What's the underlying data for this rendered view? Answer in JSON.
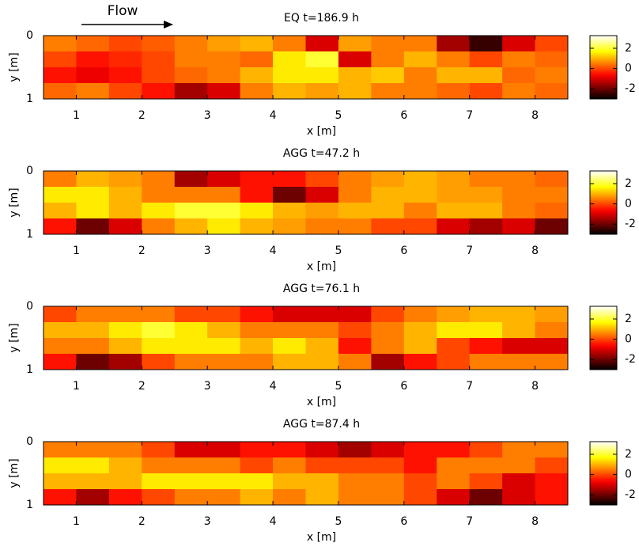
{
  "chart_data": [
    {
      "type": "heatmap",
      "annotation": "Flow",
      "title": "EQ t=186.9 h",
      "xlabel": "x [m]",
      "ylabel": "y [m]",
      "xlim": [
        0.5,
        8.5
      ],
      "xticks": [
        1,
        2,
        3,
        4,
        5,
        6,
        7,
        8
      ],
      "ylim": [
        1,
        0
      ],
      "yticks": [
        0,
        1
      ],
      "colormap": "hot",
      "clim": [
        -3,
        3.25
      ],
      "cticks": [
        2,
        0,
        -2
      ],
      "x": [
        0.75,
        1.25,
        1.75,
        2.25,
        2.75,
        3.25,
        3.75,
        4.25,
        4.75,
        5.25,
        5.75,
        6.25,
        6.75,
        7.25,
        7.75,
        8.25
      ],
      "y": [
        0.125,
        0.375,
        0.625,
        0.875
      ],
      "z": [
        [
          0.5,
          0.3,
          0,
          0.2,
          0.5,
          0.8,
          1,
          0.5,
          -1,
          0.8,
          0.5,
          0.5,
          -1.5,
          -2.5,
          -1,
          0
        ],
        [
          0,
          -0.5,
          -0.3,
          0,
          0.5,
          0.5,
          0.3,
          1.5,
          2,
          -1,
          0.5,
          1,
          0.5,
          0,
          0.5,
          0.3
        ],
        [
          -0.5,
          -0.8,
          -0.5,
          0,
          0.3,
          0.5,
          1,
          1.5,
          1.5,
          1,
          1.2,
          0.5,
          1,
          1,
          0.3,
          0.5
        ],
        [
          0.3,
          0.5,
          0,
          -0.5,
          -1.5,
          -1,
          0.5,
          1,
          0.8,
          1,
          0.5,
          0.5,
          0.3,
          0,
          0.5,
          0.3
        ]
      ]
    },
    {
      "type": "heatmap",
      "title": "AGG t=47.2 h",
      "xlabel": "x [m]",
      "ylabel": "y [m]",
      "xlim": [
        0.5,
        8.5
      ],
      "xticks": [
        1,
        2,
        3,
        4,
        5,
        6,
        7,
        8
      ],
      "ylim": [
        1,
        0
      ],
      "yticks": [
        0,
        1
      ],
      "colormap": "hot",
      "clim": [
        -3,
        3.25
      ],
      "cticks": [
        2,
        0,
        -2
      ],
      "x": [
        0.75,
        1.25,
        1.75,
        2.25,
        2.75,
        3.25,
        3.75,
        4.25,
        4.75,
        5.25,
        5.75,
        6.25,
        6.75,
        7.25,
        7.75,
        8.25
      ],
      "y": [
        0.125,
        0.375,
        0.625,
        0.875
      ],
      "z": [
        [
          0.5,
          1,
          0.8,
          0.5,
          -1.5,
          -1,
          -0.5,
          -0.5,
          0,
          0.5,
          0.8,
          1,
          0.8,
          0.5,
          0.5,
          0.3
        ],
        [
          1.5,
          1.5,
          1,
          0.5,
          0.5,
          0.5,
          -0.5,
          -2,
          -1,
          0.5,
          1,
          1,
          0.8,
          0.8,
          0.5,
          0.5
        ],
        [
          1,
          1.5,
          1,
          1.5,
          2,
          2,
          1.5,
          1,
          0.8,
          1,
          1,
          0.5,
          1,
          1,
          0.5,
          0.3
        ],
        [
          -0.5,
          -2,
          -1,
          0.5,
          1,
          1.5,
          1,
          0.8,
          0.5,
          0.5,
          0,
          0,
          -1,
          -1.5,
          -1,
          -2
        ]
      ]
    },
    {
      "type": "heatmap",
      "title": "AGG t=76.1 h",
      "xlabel": "x [m]",
      "ylabel": "y [m]",
      "xlim": [
        0.5,
        8.5
      ],
      "xticks": [
        1,
        2,
        3,
        4,
        5,
        6,
        7,
        8
      ],
      "ylim": [
        1,
        0
      ],
      "yticks": [
        0,
        1
      ],
      "colormap": "hot",
      "clim": [
        -3,
        3.25
      ],
      "cticks": [
        2,
        0,
        -2
      ],
      "x": [
        0.75,
        1.25,
        1.75,
        2.25,
        2.75,
        3.25,
        3.75,
        4.25,
        4.75,
        5.25,
        5.75,
        6.25,
        6.75,
        7.25,
        7.75,
        8.25
      ],
      "y": [
        0.125,
        0.375,
        0.625,
        0.875
      ],
      "z": [
        [
          0,
          0.5,
          0.5,
          0.5,
          0,
          0,
          -0.5,
          -1,
          -1,
          -1,
          0,
          0.5,
          0.8,
          1,
          1,
          0.8
        ],
        [
          1,
          1,
          1.5,
          2,
          1.5,
          1,
          0.5,
          0.5,
          0.5,
          0,
          0.5,
          1,
          1.5,
          1.5,
          1,
          0.5
        ],
        [
          0.5,
          0.5,
          1,
          1.5,
          1.5,
          1.5,
          1,
          1.5,
          1,
          -0.5,
          0.5,
          1,
          0,
          -0.5,
          -1,
          -1
        ],
        [
          -0.5,
          -2,
          -1.5,
          0,
          0.5,
          0.5,
          0.5,
          1,
          1,
          0.5,
          -1.5,
          -0.5,
          0,
          0.5,
          0.5,
          0.5
        ]
      ]
    },
    {
      "type": "heatmap",
      "title": "AGG t=87.4 h",
      "xlabel": "x [m]",
      "ylabel": "y [m]",
      "xlim": [
        0.5,
        8.5
      ],
      "xticks": [
        1,
        2,
        3,
        4,
        5,
        6,
        7,
        8
      ],
      "ylim": [
        1,
        0
      ],
      "yticks": [
        0,
        1
      ],
      "colormap": "hot",
      "clim": [
        -3,
        3.25
      ],
      "cticks": [
        2,
        0,
        -2
      ],
      "x": [
        0.75,
        1.25,
        1.75,
        2.25,
        2.75,
        3.25,
        3.75,
        4.25,
        4.75,
        5.25,
        5.75,
        6.25,
        6.75,
        7.25,
        7.75,
        8.25
      ],
      "y": [
        0.125,
        0.375,
        0.625,
        0.875
      ],
      "z": [
        [
          0.5,
          0.5,
          0.5,
          0,
          -1,
          -1,
          -0.5,
          -0.5,
          -1,
          -1.5,
          -1,
          -0.5,
          -0.5,
          0,
          0.5,
          0.5
        ],
        [
          1.5,
          1.5,
          1,
          0.5,
          0.5,
          0.5,
          0,
          0.5,
          0,
          0,
          0,
          -0.5,
          0.5,
          0.5,
          0.5,
          0
        ],
        [
          1,
          1,
          1,
          1.5,
          1.5,
          1.5,
          1.5,
          1,
          1,
          0.5,
          0.5,
          0,
          0.5,
          0,
          -1,
          -0.5
        ],
        [
          -0.5,
          -1.5,
          -0.5,
          0,
          0.5,
          0.5,
          1,
          0.5,
          1,
          0.5,
          0.5,
          0,
          -1,
          -2,
          -1,
          -0.5
        ]
      ]
    }
  ]
}
